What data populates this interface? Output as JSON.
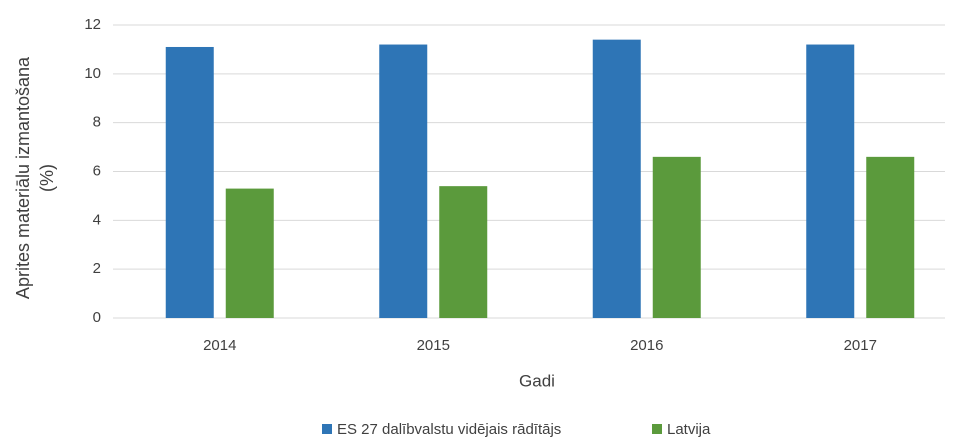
{
  "chart_data": {
    "type": "bar",
    "y_label": [
      "Aprites materiālu izmantošana",
      "(%)"
    ],
    "x_label": "Gadi",
    "categories": [
      "2014",
      "2015",
      "2016",
      "2017"
    ],
    "series": [
      {
        "name": "ES 27 dalībvalstu vidējais rādītājs",
        "color": "#2e75b6",
        "values": [
          11.1,
          11.2,
          11.4,
          11.2
        ]
      },
      {
        "name": "Latvija",
        "color": "#5b9a3c",
        "values": [
          5.3,
          5.4,
          6.6,
          6.6
        ]
      }
    ],
    "ylim": [
      0,
      12
    ],
    "yticks": [
      0,
      2,
      4,
      6,
      8,
      10,
      12
    ],
    "grid": true,
    "legend": "bottom"
  }
}
